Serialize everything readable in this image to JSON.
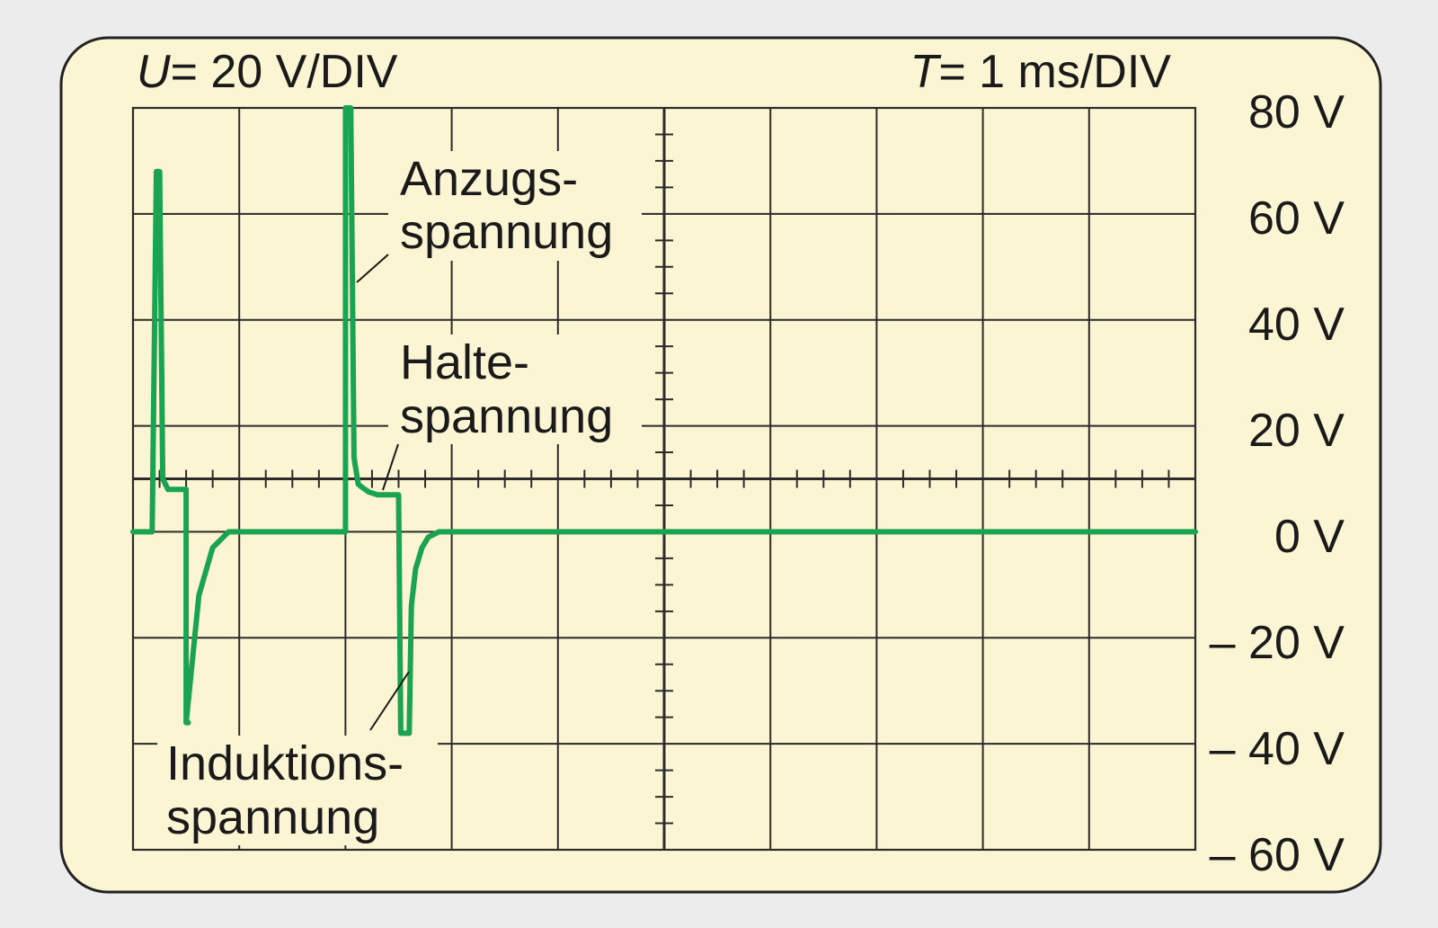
{
  "header": {
    "u_symbol": "U",
    "u_value": "= 20 V/DIV",
    "t_symbol": "T",
    "t_value": "= 1 ms/DIV"
  },
  "y_tick_labels": [
    "80 V",
    "60 V",
    "40 V",
    "20 V",
    "0 V",
    "– 20 V",
    "– 40 V",
    "– 60 V"
  ],
  "annotations": {
    "anzug_line1": "Anzugs-",
    "anzug_line2": "spannung",
    "halte_line1": "Halte-",
    "halte_line2": "spannung",
    "induktion_line1": "Induktions-",
    "induktion_line2": "spannung"
  },
  "colors": {
    "background": "#ececec",
    "panel": "#fbf5d3",
    "grid": "#2b2b2b",
    "trace": "#1aa351"
  },
  "chart_data": {
    "type": "line",
    "title": "",
    "xlabel": "",
    "ylabel": "",
    "x_unit": "ms",
    "y_unit": "V",
    "x_per_div": 1,
    "y_per_div": 20,
    "xlim": [
      0,
      10
    ],
    "ylim": [
      -60,
      80
    ],
    "x_divisions": 10,
    "y_divisions": 7,
    "grid": true,
    "series": [
      {
        "x": [
          0,
          0.18,
          0.22,
          0.25,
          0.28,
          0.33,
          0.48,
          0.5,
          0.5,
          0.52,
          0.5,
          0.62,
          0.75,
          0.9,
          1.0,
          2.0,
          2.0,
          2.05,
          2.08,
          2.12,
          2.15,
          2.22,
          2.3,
          2.42,
          2.5,
          2.52,
          2.6,
          2.62,
          2.66,
          2.72,
          2.78,
          2.88,
          3.0,
          5,
          7.5,
          10
        ],
        "y": [
          0,
          0,
          68,
          68,
          10,
          8,
          8,
          8,
          -36,
          -36,
          -36,
          -12,
          -3,
          0,
          0,
          0,
          80,
          80,
          14,
          9,
          8.5,
          7.5,
          7,
          7,
          7,
          -38,
          -38,
          -14,
          -7,
          -3,
          -1,
          0,
          0,
          0,
          0,
          0
        ]
      }
    ]
  }
}
